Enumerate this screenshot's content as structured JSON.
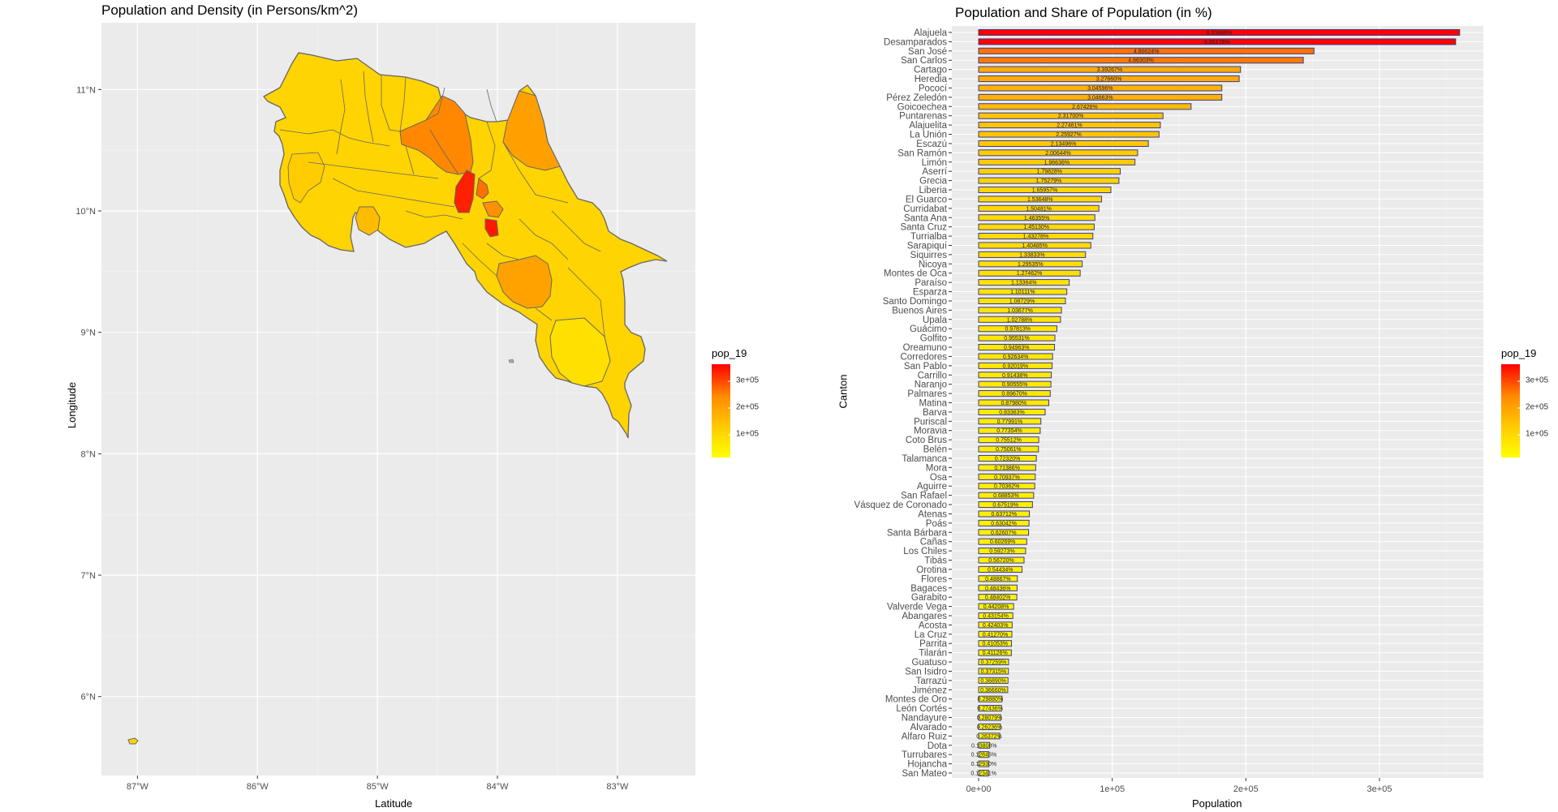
{
  "left_panel": {
    "title": "Population and Density (in Persons/km^2)",
    "xlabel": "Latitude",
    "ylabel": "Longitude",
    "x_ticks": [
      "87°W",
      "86°W",
      "85°W",
      "84°W",
      "83°W"
    ],
    "y_ticks": [
      "11°N",
      "10°N",
      "9°N",
      "8°N",
      "7°N",
      "6°N"
    ],
    "legend_title": "pop_19",
    "legend_ticks": [
      "3e+05",
      "2e+05",
      "1e+05"
    ],
    "colors": {
      "low": "#ffff00",
      "mid": "#ff9900",
      "high": "#ff0000",
      "border": "#666666"
    }
  },
  "chart_data": [
    {
      "type": "map",
      "title": "Population and Density (in Persons/km^2)",
      "xlabel": "Latitude",
      "ylabel": "Longitude",
      "xlim": [
        -87.3,
        -82.35
      ],
      "ylim": [
        5.35,
        11.55
      ],
      "x_ticks": [
        -87,
        -86,
        -85,
        -84,
        -83
      ],
      "y_ticks": [
        11,
        10,
        9,
        8,
        7,
        6
      ],
      "legend_title": "pop_19",
      "legend_ticks": [
        300000,
        200000,
        100000
      ]
    },
    {
      "type": "bar",
      "orientation": "horizontal",
      "title": "Population and Share of Population (in %)",
      "xlabel": "Population",
      "ylabel": "Canton",
      "xlim": [
        0,
        380000
      ],
      "x_ticks": [
        "0e+00",
        "1e+05",
        "2e+05",
        "3e+05"
      ],
      "legend_title": "pop_19",
      "legend_ticks": [
        "3e+05",
        "2e+05",
        "1e+05"
      ],
      "color_scale": [
        "#ffff00",
        "#ff0000"
      ],
      "bars": [
        {
          "name": "Alajuela",
          "value": 360000,
          "label": "6.93688%"
        },
        {
          "name": "Desamparados",
          "value": 357000,
          "label": "6.86176%"
        },
        {
          "name": "San José",
          "value": 251000,
          "label": "4.80024%"
        },
        {
          "name": "San Carlos",
          "value": 243000,
          "label": "4.66303%"
        },
        {
          "name": "Cartago",
          "value": 196000,
          "label": "3.39267%"
        },
        {
          "name": "Heredia",
          "value": 195000,
          "label": "3.27660%"
        },
        {
          "name": "Pococí",
          "value": 182000,
          "label": "3.04596%"
        },
        {
          "name": "Pérez Zeledón",
          "value": 182000,
          "label": "3.04663%"
        },
        {
          "name": "Goicoechea",
          "value": 159000,
          "label": "2.67426%"
        },
        {
          "name": "Puntarenas",
          "value": 138000,
          "label": "2.31700%"
        },
        {
          "name": "Alajuelita",
          "value": 136000,
          "label": "2.27461%"
        },
        {
          "name": "La Unión",
          "value": 135000,
          "label": "2.25927%"
        },
        {
          "name": "Escazú",
          "value": 127000,
          "label": "2.13496%"
        },
        {
          "name": "San Ramón",
          "value": 119000,
          "label": "2.00644%"
        },
        {
          "name": "Limón",
          "value": 117000,
          "label": "1.96636%"
        },
        {
          "name": "Aserrí",
          "value": 106000,
          "label": "1.79828%"
        },
        {
          "name": "Grecia",
          "value": 105000,
          "label": "1.75279%"
        },
        {
          "name": "Liberia",
          "value": 99000,
          "label": "1.65957%"
        },
        {
          "name": "El Guarco",
          "value": 92000,
          "label": "1.53648%"
        },
        {
          "name": "Curridabat",
          "value": 90000,
          "label": "1.50481%"
        },
        {
          "name": "Santa Ana",
          "value": 87000,
          "label": "1.46355%"
        },
        {
          "name": "Santa Cruz",
          "value": 86500,
          "label": "1.45130%"
        },
        {
          "name": "Turrialba",
          "value": 85500,
          "label": "1.43278%"
        },
        {
          "name": "Sarapiquí",
          "value": 84000,
          "label": "1.40485%"
        },
        {
          "name": "Siquirres",
          "value": 80000,
          "label": "1.33833%"
        },
        {
          "name": "Nicoya",
          "value": 77500,
          "label": "1.29535%"
        },
        {
          "name": "Montes de Oca",
          "value": 76000,
          "label": "1.27462%"
        },
        {
          "name": "Paraíso",
          "value": 67800,
          "label": "1.13364%"
        },
        {
          "name": "Esparza",
          "value": 66000,
          "label": "1.10111%"
        },
        {
          "name": "Santo Domingo",
          "value": 65000,
          "label": "1.08729%"
        },
        {
          "name": "Buenos Aires",
          "value": 62000,
          "label": "1.03677%"
        },
        {
          "name": "Upala",
          "value": 61300,
          "label": "1.02788%"
        },
        {
          "name": "Guácimo",
          "value": 58600,
          "label": "0.97813%"
        },
        {
          "name": "Golfito",
          "value": 57100,
          "label": "0.95531%"
        },
        {
          "name": "Oreamuno",
          "value": 56800,
          "label": "0.94963%"
        },
        {
          "name": "Corredores",
          "value": 55400,
          "label": "0.92634%"
        },
        {
          "name": "San Pablo",
          "value": 55000,
          "label": "0.92019%"
        },
        {
          "name": "Carrillo",
          "value": 54400,
          "label": "0.91438%"
        },
        {
          "name": "Naranjo",
          "value": 54100,
          "label": "0.90555%"
        },
        {
          "name": "Palmares",
          "value": 53600,
          "label": "0.89670%"
        },
        {
          "name": "Matina",
          "value": 52500,
          "label": "0.87980%"
        },
        {
          "name": "Barva",
          "value": 49800,
          "label": "0.83363%"
        },
        {
          "name": "Puriscal",
          "value": 46600,
          "label": "0.77991%"
        },
        {
          "name": "Moravia",
          "value": 46100,
          "label": "0.77354%"
        },
        {
          "name": "Coto Brus",
          "value": 45000,
          "label": "0.75512%"
        },
        {
          "name": "Belén",
          "value": 44800,
          "label": "0.75061%"
        },
        {
          "name": "Talamanca",
          "value": 43200,
          "label": "0.72320%"
        },
        {
          "name": "Mora",
          "value": 42700,
          "label": "0.71386%"
        },
        {
          "name": "Osa",
          "value": 42400,
          "label": "0.70937%"
        },
        {
          "name": "Aguirre",
          "value": 42000,
          "label": "0.70362%"
        },
        {
          "name": "San Rafael",
          "value": 41200,
          "label": "0.68853%"
        },
        {
          "name": "Vásquez de Coronado",
          "value": 40300,
          "label": "0.67519%"
        },
        {
          "name": "Atenas",
          "value": 38000,
          "label": "0.63712%"
        },
        {
          "name": "Poás",
          "value": 37700,
          "label": "0.63042%"
        },
        {
          "name": "Santa Bárbara",
          "value": 37400,
          "label": "0.62607%"
        },
        {
          "name": "Cañas",
          "value": 36000,
          "label": "0.60269%"
        },
        {
          "name": "Los Chiles",
          "value": 35200,
          "label": "0.59273%"
        },
        {
          "name": "Tibás",
          "value": 34000,
          "label": "0.56720%"
        },
        {
          "name": "Orotina",
          "value": 32500,
          "label": "0.54434%"
        },
        {
          "name": "Flores",
          "value": 29000,
          "label": "0.48867%"
        },
        {
          "name": "Bagaces",
          "value": 28800,
          "label": "0.48436%"
        },
        {
          "name": "Garabito",
          "value": 28600,
          "label": "0.48402%"
        },
        {
          "name": "Valverde Vega",
          "value": 26200,
          "label": "0.44208%"
        },
        {
          "name": "Abangares",
          "value": 25600,
          "label": "0.43154%"
        },
        {
          "name": "Acosta",
          "value": 25100,
          "label": "0.42403%"
        },
        {
          "name": "La Cruz",
          "value": 24900,
          "label": "0.41270%"
        },
        {
          "name": "Parrita",
          "value": 24600,
          "label": "0.41053%"
        },
        {
          "name": "Tilarán",
          "value": 24500,
          "label": "0.41126%"
        },
        {
          "name": "Guatuso",
          "value": 22400,
          "label": "0.37259%"
        },
        {
          "name": "San Isidro",
          "value": 22300,
          "label": "0.37315%"
        },
        {
          "name": "Tarrazú",
          "value": 22000,
          "label": "0.36890%"
        },
        {
          "name": "Jiménez",
          "value": 21800,
          "label": "0.36660%"
        },
        {
          "name": "Montes de Oro",
          "value": 17500,
          "label": "0.29880%"
        },
        {
          "name": "León Cortés",
          "value": 17100,
          "label": "0.27436%"
        },
        {
          "name": "Nandayure",
          "value": 16500,
          "label": "0.28079%"
        },
        {
          "name": "Alvarado",
          "value": 16300,
          "label": "0.26236%"
        },
        {
          "name": "Alfaro Ruiz",
          "value": 15800,
          "label": "0.26372%"
        },
        {
          "name": "Dota",
          "value": 8200,
          "label": "0.13808%"
        },
        {
          "name": "Turrubares",
          "value": 7700,
          "label": "0.12845%"
        },
        {
          "name": "Hojancha",
          "value": 7700,
          "label": "0.12930%"
        },
        {
          "name": "San Mateo",
          "value": 7500,
          "label": "0.12341%"
        }
      ]
    }
  ]
}
